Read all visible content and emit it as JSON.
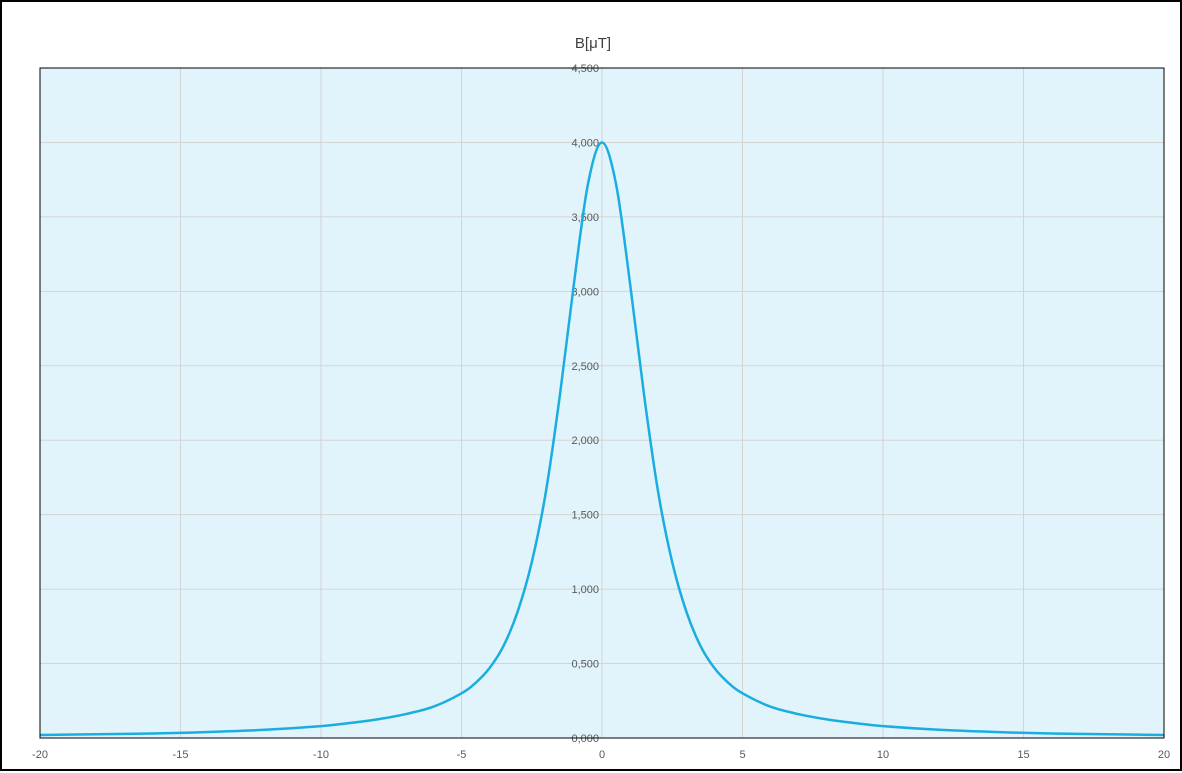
{
  "chart_data": {
    "type": "line",
    "title": "B[μT]",
    "xlabel": "",
    "ylabel": "",
    "xlim": [
      -20,
      20
    ],
    "ylim": [
      0,
      4.5
    ],
    "x_ticks": [
      -20,
      -15,
      -10,
      -5,
      0,
      5,
      10,
      15,
      20
    ],
    "x_tick_labels": [
      "-20",
      "-15",
      "-10",
      "-5",
      "0",
      "5",
      "10",
      "15",
      "20"
    ],
    "y_ticks": [
      0,
      0.5,
      1,
      1.5,
      2,
      2.5,
      3,
      3.5,
      4,
      4.5
    ],
    "y_tick_labels": [
      "0,000",
      "0,500",
      "1,000",
      "1,500",
      "2,000",
      "2,500",
      "3,000",
      "3,500",
      "4,000",
      "4,500"
    ],
    "grid": true,
    "legend": "none",
    "colors": {
      "plot_background": "#e1f4fb",
      "line": "#1aade0",
      "grid": "#d4d4d4",
      "axis": "#000000"
    },
    "series": [
      {
        "x": [
          -20,
          -18,
          -16,
          -14,
          -12,
          -10,
          -9,
          -8,
          -7,
          -6,
          -5,
          -4.5,
          -4,
          -3.5,
          -3,
          -2.5,
          -2,
          -1.5,
          -1,
          -0.5,
          0,
          0.5,
          1,
          1.5,
          2,
          2.5,
          3,
          3.5,
          4,
          4.5,
          5,
          6,
          7,
          8,
          9,
          10,
          12,
          14,
          16,
          18,
          20
        ],
        "y": [
          0.02,
          0.025,
          0.03,
          0.04,
          0.055,
          0.08,
          0.1,
          0.125,
          0.16,
          0.21,
          0.3,
          0.37,
          0.47,
          0.62,
          0.85,
          1.18,
          1.65,
          2.3,
          3.05,
          3.72,
          4.0,
          3.72,
          3.05,
          2.3,
          1.65,
          1.18,
          0.85,
          0.62,
          0.47,
          0.37,
          0.3,
          0.21,
          0.16,
          0.125,
          0.1,
          0.08,
          0.055,
          0.04,
          0.03,
          0.025,
          0.02
        ]
      }
    ]
  }
}
